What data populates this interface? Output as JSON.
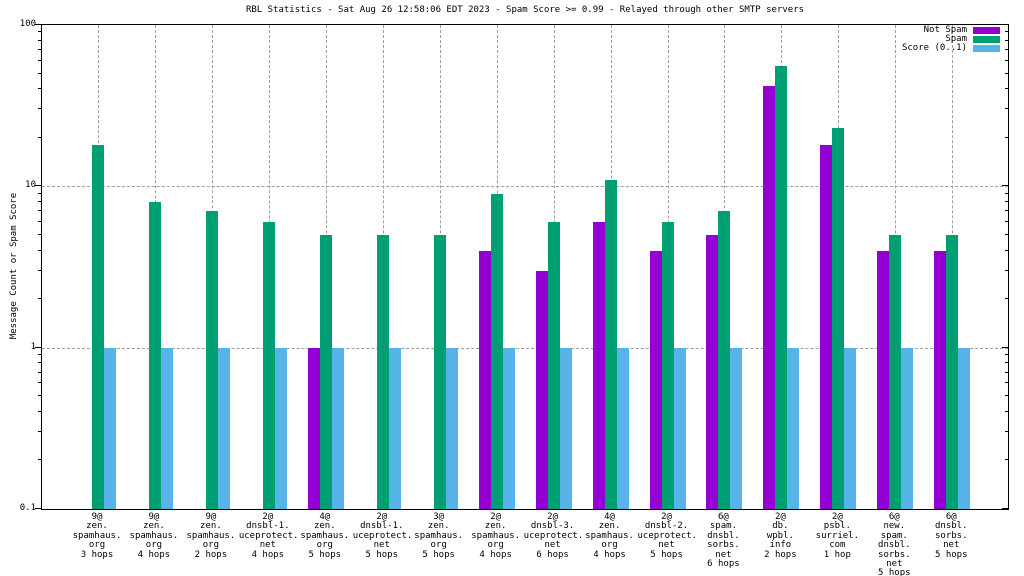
{
  "chart_data": {
    "type": "bar",
    "title": "RBL Statistics - Sat Aug 26 12:58:06 EDT 2023 - Spam Score >= 0.99 - Relayed through other SMTP servers",
    "ylabel": "Message Count or Spam Score",
    "y_scale": "log",
    "ylim": [
      0.1,
      100
    ],
    "y_ticks": [
      {
        "label": "100",
        "value": 100
      },
      {
        "label": "10",
        "value": 10
      },
      {
        "label": "1",
        "value": 1
      },
      {
        "label": "0.1",
        "value": 0.1
      }
    ],
    "grid": true,
    "legend_position": "top-right",
    "colors": {
      "not_spam": "#9400d3",
      "spam": "#009e73",
      "score": "#56b4e9",
      "grid": "#9e9e9e",
      "border": "#000000"
    },
    "categories": [
      [
        "9@",
        "zen.",
        "spamhaus.",
        "org",
        "3 hops"
      ],
      [
        "9@",
        "zen.",
        "spamhaus.",
        "org",
        "4 hops"
      ],
      [
        "9@",
        "zen.",
        "spamhaus.",
        "org",
        "2 hops"
      ],
      [
        "2@",
        "dnsbl-1.",
        "uceprotect.",
        "net",
        "4 hops"
      ],
      [
        "4@",
        "zen.",
        "spamhaus.",
        "org",
        "5 hops"
      ],
      [
        "2@",
        "dnsbl-1.",
        "uceprotect.",
        "net",
        "5 hops"
      ],
      [
        "3@",
        "zen.",
        "spamhaus.",
        "org",
        "5 hops"
      ],
      [
        "2@",
        "zen.",
        "spamhaus.",
        "org",
        "4 hops"
      ],
      [
        "2@",
        "dnsbl-3.",
        "uceprotect.",
        "net",
        "6 hops"
      ],
      [
        "4@",
        "zen.",
        "spamhaus.",
        "org",
        "4 hops"
      ],
      [
        "2@",
        "dnsbl-2.",
        "uceprotect.",
        "net",
        "5 hops"
      ],
      [
        "6@",
        "spam.",
        "dnsbl.",
        "sorbs.",
        "net",
        "6 hops"
      ],
      [
        "2@",
        "db.",
        "wpbl.",
        "info",
        "2 hops"
      ],
      [
        "2@",
        "psbl.",
        "surriel.",
        "com",
        "1 hop"
      ],
      [
        "6@",
        "new.",
        "spam.",
        "dnsbl.",
        "sorbs.",
        "net",
        "5 hops"
      ],
      [
        "6@",
        "dnsbl.",
        "sorbs.",
        "net",
        "5 hops"
      ]
    ],
    "series": [
      {
        "name": "Not Spam",
        "color": "#9400d3",
        "values": [
          0,
          0,
          0,
          0,
          1,
          0,
          0,
          4,
          3,
          6,
          4,
          5,
          42,
          18,
          4,
          4
        ]
      },
      {
        "name": "Spam",
        "color": "#009e73",
        "values": [
          18,
          8,
          7,
          6,
          5,
          5,
          5,
          9,
          6,
          11,
          6,
          7,
          56,
          23,
          5,
          5
        ]
      },
      {
        "name": "Score (0..1)",
        "color": "#56b4e9",
        "values": [
          1,
          1,
          1,
          1,
          1,
          1,
          1,
          1,
          1,
          1,
          1,
          1,
          1,
          1,
          1,
          1
        ]
      }
    ]
  }
}
